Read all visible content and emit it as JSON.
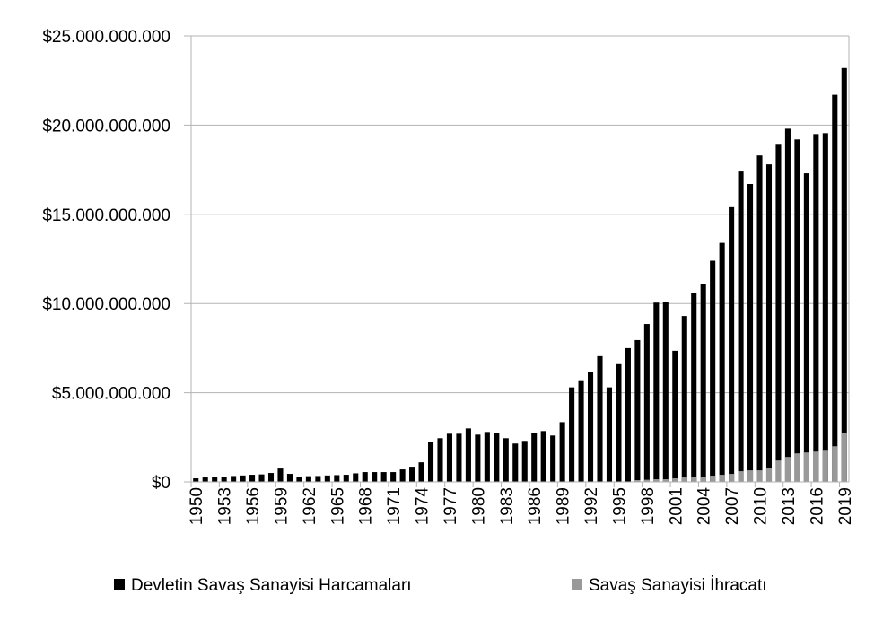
{
  "chart_data": {
    "type": "bar",
    "overlap": true,
    "x": [
      1950,
      1951,
      1952,
      1953,
      1954,
      1955,
      1956,
      1957,
      1958,
      1959,
      1960,
      1961,
      1962,
      1963,
      1964,
      1965,
      1966,
      1967,
      1968,
      1969,
      1970,
      1971,
      1972,
      1973,
      1974,
      1975,
      1976,
      1977,
      1978,
      1979,
      1980,
      1981,
      1982,
      1983,
      1984,
      1985,
      1986,
      1987,
      1988,
      1989,
      1990,
      1991,
      1992,
      1993,
      1994,
      1995,
      1996,
      1997,
      1998,
      1999,
      2000,
      2001,
      2002,
      2003,
      2004,
      2005,
      2006,
      2007,
      2008,
      2009,
      2010,
      2011,
      2012,
      2013,
      2014,
      2015,
      2016,
      2017,
      2018,
      2019
    ],
    "xlim": [
      1949.5,
      2019.5
    ],
    "xticks": [
      1950,
      1953,
      1956,
      1959,
      1962,
      1965,
      1968,
      1971,
      1974,
      1977,
      1980,
      1983,
      1986,
      1989,
      1992,
      1995,
      1998,
      2001,
      2004,
      2007,
      2010,
      2013,
      2016,
      2019
    ],
    "ylim": [
      0,
      25000000000
    ],
    "yticks": [
      {
        "value": 0,
        "label": "$0"
      },
      {
        "value": 5000000000,
        "label": "$5.000.000.000"
      },
      {
        "value": 10000000000,
        "label": "$10.000.000.000"
      },
      {
        "value": 15000000000,
        "label": "$15.000.000.000"
      },
      {
        "value": 20000000000,
        "label": "$20.000.000.000"
      },
      {
        "value": 25000000000,
        "label": "$25.000.000.000"
      }
    ],
    "grid": true,
    "legend": "bottom",
    "series": [
      {
        "name": "Devletin Savaş Sanayisi Harcamaları",
        "color": "#000000",
        "values": [
          200000000,
          250000000,
          280000000,
          300000000,
          330000000,
          360000000,
          400000000,
          420000000,
          500000000,
          750000000,
          450000000,
          300000000,
          320000000,
          330000000,
          360000000,
          380000000,
          400000000,
          480000000,
          550000000,
          550000000,
          550000000,
          550000000,
          700000000,
          850000000,
          1100000000,
          2250000000,
          2450000000,
          2700000000,
          2700000000,
          3000000000,
          2650000000,
          2800000000,
          2750000000,
          2450000000,
          2150000000,
          2300000000,
          2750000000,
          2850000000,
          2600000000,
          3350000000,
          5300000000,
          5650000000,
          6150000000,
          7050000000,
          5300000000,
          6600000000,
          7500000000,
          7950000000,
          8850000000,
          10050000000,
          10100000000,
          7350000000,
          9300000000,
          10600000000,
          11100000000,
          12400000000,
          13400000000,
          15400000000,
          17400000000,
          16700000000,
          18300000000,
          17800000000,
          18900000000,
          19800000000,
          19200000000,
          17300000000,
          19500000000,
          19550000000,
          21700000000,
          23200000000
        ]
      },
      {
        "name": "Savaş Sanayisi İhracatı",
        "color": "#999999",
        "values": [
          0,
          0,
          0,
          0,
          0,
          0,
          0,
          0,
          0,
          0,
          0,
          0,
          0,
          0,
          0,
          0,
          0,
          0,
          0,
          0,
          0,
          0,
          0,
          0,
          0,
          0,
          0,
          0,
          0,
          0,
          0,
          0,
          0,
          0,
          0,
          0,
          0,
          0,
          0,
          0,
          0,
          0,
          0,
          0,
          0,
          0,
          0,
          100000000,
          120000000,
          150000000,
          150000000,
          200000000,
          250000000,
          300000000,
          300000000,
          350000000,
          400000000,
          450000000,
          600000000,
          650000000,
          650000000,
          800000000,
          1200000000,
          1400000000,
          1600000000,
          1650000000,
          1700000000,
          1750000000,
          2000000000,
          2750000000
        ]
      }
    ]
  }
}
